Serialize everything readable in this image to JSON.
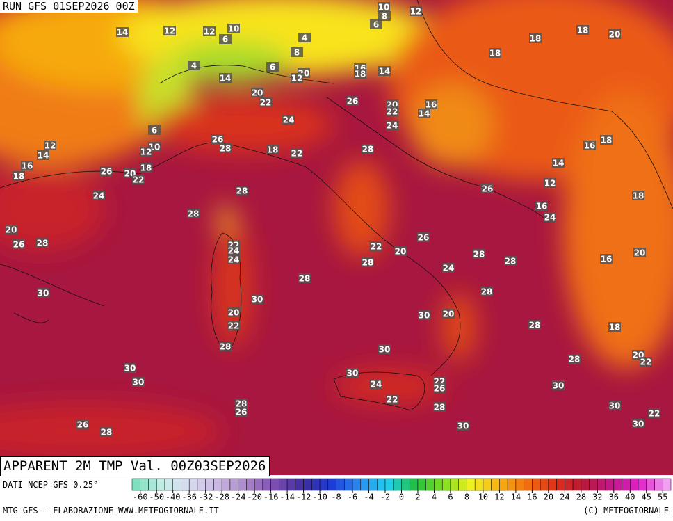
{
  "header": {
    "run": "RUN GFS 01SEP2026 00Z"
  },
  "footer": {
    "title": "APPARENT 2M TMP Val. 00Z03SEP2026",
    "source": "DATI NCEP GFS 0.25°",
    "credit": "MTG-GFS – ELABORAZIONE WWW.METEOGIORNALE.IT",
    "copyright": "(C) METEOGIORNALE"
  },
  "legend": {
    "ticks": [
      -60,
      -50,
      -40,
      -36,
      -32,
      -28,
      -24,
      -20,
      -16,
      -14,
      -12,
      -10,
      -8,
      -6,
      -4,
      -2,
      0,
      2,
      4,
      6,
      8,
      10,
      12,
      14,
      16,
      20,
      24,
      28,
      32,
      36,
      40,
      45,
      55
    ]
  },
  "map_labels": [
    10,
    8,
    12,
    14,
    12,
    12,
    10,
    6,
    6,
    4,
    8,
    4,
    6,
    20,
    12,
    14,
    16,
    18,
    14,
    18,
    18,
    20,
    18,
    20,
    22,
    26,
    20,
    22,
    16,
    14,
    24,
    24,
    6,
    10,
    12,
    26,
    28,
    18,
    22,
    28,
    12,
    14,
    16,
    18,
    26,
    20,
    22,
    18,
    24,
    28,
    28,
    26,
    12,
    14,
    16,
    18,
    18,
    16,
    24,
    20,
    26,
    28,
    22,
    24,
    24,
    26,
    22,
    28,
    20,
    28,
    28,
    24,
    20,
    16,
    28,
    30,
    30,
    28,
    20,
    22,
    30,
    20,
    28,
    18,
    28,
    30,
    28,
    20,
    22,
    30,
    30,
    30,
    24,
    22,
    26,
    22,
    30,
    28,
    26,
    28,
    30,
    22,
    30,
    26,
    28,
    30
  ]
}
